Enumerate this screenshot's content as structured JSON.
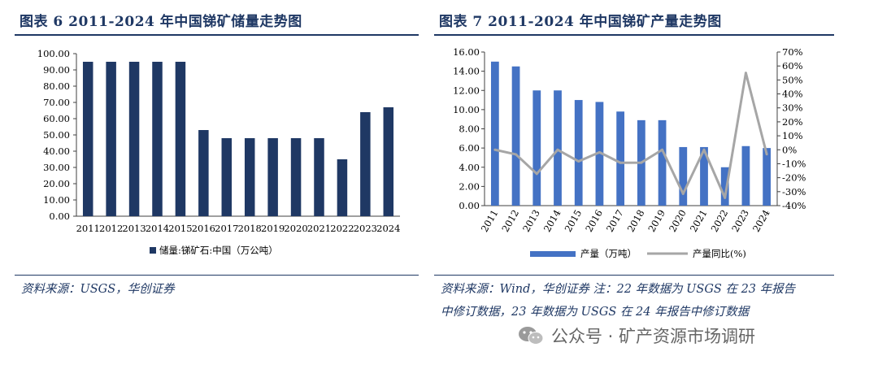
{
  "left": {
    "title": "图表 6   2011-2024 年中国锑矿储量走势图",
    "source": "资料来源：USGS，华创证券"
  },
  "right": {
    "title": "图表 7   2011-2024 年中国锑矿产量走势图",
    "source_line1": "资料来源：Wind，华创证券    注：22 年数据为 USGS 在 23 年报告",
    "source_line2": "中修订数据，23 年数据为 USGS 在 24 年报告中修订数据"
  },
  "watermark": {
    "text": "公众号 · 矿产资源市场调研",
    "icon": "wechat-icon"
  },
  "colors": {
    "navy": "#1F3864",
    "bar_blue": "#4472C4",
    "line_gray": "#A6A6A6"
  },
  "chart_data": [
    {
      "type": "bar",
      "categories": [
        "2011",
        "2012",
        "2013",
        "2014",
        "2015",
        "2016",
        "2017",
        "2018",
        "2019",
        "2020",
        "2021",
        "2022",
        "2023",
        "2024"
      ],
      "series": [
        {
          "name": "储量:锑矿石:中国（万公吨）",
          "values": [
            95,
            95,
            95,
            95,
            95,
            53,
            48,
            48,
            48,
            48,
            48,
            35,
            64,
            67
          ]
        }
      ],
      "ylim": [
        0,
        100
      ],
      "yticks": [
        "0.00",
        "10.00",
        "20.00",
        "30.00",
        "40.00",
        "50.00",
        "60.00",
        "70.00",
        "80.00",
        "90.00",
        "100.00"
      ],
      "legend_position": "bottom",
      "grid": false
    },
    {
      "type": "bar",
      "categories": [
        "2011",
        "2012",
        "2013",
        "2014",
        "2015",
        "2016",
        "2017",
        "2018",
        "2019",
        "2020",
        "2021",
        "2022",
        "2023",
        "2024"
      ],
      "series": [
        {
          "name": "产量（万吨）",
          "type": "bar",
          "axis": "left",
          "values": [
            15.0,
            14.5,
            12.0,
            12.0,
            11.0,
            10.8,
            9.8,
            8.9,
            8.9,
            6.1,
            6.1,
            4.0,
            6.2,
            6.0
          ]
        },
        {
          "name": "产量同比(%)",
          "type": "line",
          "axis": "right",
          "values": [
            0.0,
            -3.3,
            -17.2,
            0.0,
            -8.3,
            -1.8,
            -9.3,
            -9.2,
            0.0,
            -31.5,
            0.0,
            -34.4,
            55.0,
            -3.2
          ]
        }
      ],
      "ylim_left": [
        0,
        16
      ],
      "yticks_left": [
        "0.00",
        "2.00",
        "4.00",
        "6.00",
        "8.00",
        "10.00",
        "12.00",
        "14.00",
        "16.00"
      ],
      "ylim_right": [
        -40,
        70
      ],
      "yticks_right": [
        "-40%",
        "-30%",
        "-20%",
        "-10%",
        "0%",
        "10%",
        "20%",
        "30%",
        "40%",
        "50%",
        "60%",
        "70%"
      ],
      "legend_position": "bottom",
      "grid": false
    }
  ]
}
